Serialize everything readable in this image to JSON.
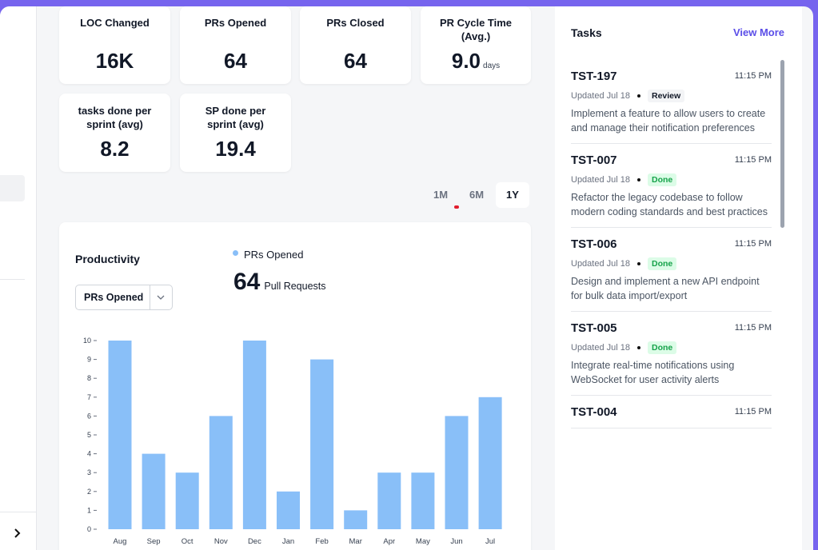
{
  "metrics": [
    {
      "label": "LOC Changed",
      "value": "16K"
    },
    {
      "label": "PRs Opened",
      "value": "64"
    },
    {
      "label": "PRs Closed",
      "value": "64"
    },
    {
      "label": "PR Cycle Time (Avg.)",
      "value": "9.0",
      "unit": "days"
    },
    {
      "label": "tasks done per sprint (avg)",
      "value": "8.2"
    },
    {
      "label": "SP done per sprint (avg)",
      "value": "19.4"
    }
  ],
  "range_buttons": [
    "1M",
    "6M",
    "1Y"
  ],
  "productivity": {
    "title": "Productivity",
    "dropdown": "PRs Opened",
    "total": "64",
    "total_unit": "Pull Requests",
    "chart_data": {
      "type": "bar",
      "categories": [
        "Aug",
        "Sep",
        "Oct",
        "Nov",
        "Dec",
        "Jan",
        "Feb",
        "Mar",
        "Apr",
        "May",
        "Jun",
        "Jul"
      ],
      "series": [
        {
          "name": "PRs Opened",
          "color": "#89bff8",
          "values": [
            10,
            4,
            3,
            6,
            10,
            2,
            9,
            1,
            3,
            3,
            6,
            7
          ]
        }
      ],
      "ylim": [
        0,
        10
      ],
      "yticks": [
        0,
        1,
        2,
        3,
        4,
        5,
        6,
        7,
        8,
        9,
        10
      ],
      "grid": false
    }
  },
  "tasks": {
    "title": "Tasks",
    "view_more": "View More",
    "items": [
      {
        "id": "TST-197",
        "time": "11:15 PM",
        "updated": "Updated Jul 18",
        "status": "Review",
        "description": "Implement a feature to allow users to create and manage their notification preferences"
      },
      {
        "id": "TST-007",
        "time": "11:15 PM",
        "updated": "Updated Jul 18",
        "status": "Done",
        "description": "Refactor the legacy codebase to follow modern coding standards and best practices"
      },
      {
        "id": "TST-006",
        "time": "11:15 PM",
        "updated": "Updated Jul 18",
        "status": "Done",
        "description": "Design and implement a new API endpoint for bulk data import/export"
      },
      {
        "id": "TST-005",
        "time": "11:15 PM",
        "updated": "Updated Jul 18",
        "status": "Done",
        "description": "Integrate real-time notifications using WebSocket for user activity alerts"
      },
      {
        "id": "TST-004",
        "time": "11:15 PM"
      }
    ]
  }
}
